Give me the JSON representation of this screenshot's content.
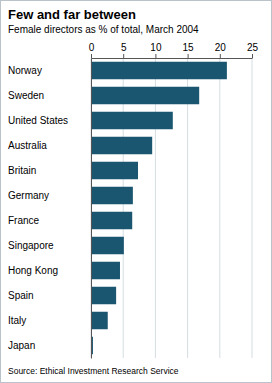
{
  "chart_data": {
    "type": "bar",
    "orientation": "horizontal",
    "title": "Few and far between",
    "subtitle": "Female directors as % of total, March 2004",
    "source": "Source: Ethical Investment Research Service",
    "categories": [
      "Norway",
      "Sweden",
      "United States",
      "Australia",
      "Britain",
      "Germany",
      "France",
      "Singapore",
      "Hong Kong",
      "Spain",
      "Italy",
      "Japan"
    ],
    "values": [
      21.1,
      16.8,
      12.7,
      9.5,
      7.3,
      6.5,
      6.4,
      5.1,
      4.5,
      3.9,
      2.6,
      0.3
    ],
    "color": "#1a5670",
    "xlim": [
      0,
      25
    ],
    "xticks": [
      0,
      5,
      10,
      15,
      20,
      25
    ],
    "grid": true
  }
}
